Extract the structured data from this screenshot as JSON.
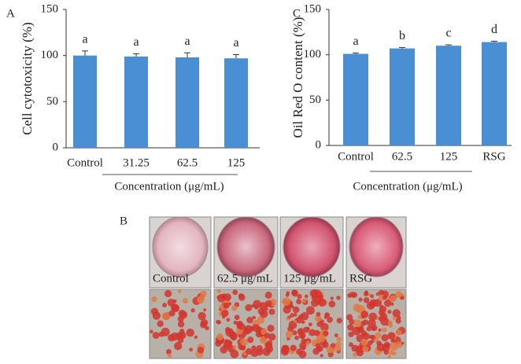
{
  "chart_data": [
    {
      "type": "bar",
      "panel": "A",
      "y_label": "Cell cytotoxicity (%)",
      "x_label": "Concentration (μg/mL)",
      "categories": [
        "Control",
        "31.25",
        "62.5",
        "125"
      ],
      "values": [
        100,
        99,
        98,
        97
      ],
      "errors": [
        5,
        3,
        5,
        4
      ],
      "annotations": [
        "a",
        "a",
        "a",
        "a"
      ],
      "color": "#4a8fd4",
      "ylim": [
        0,
        150
      ],
      "yticks": [
        0,
        50,
        100,
        150
      ]
    },
    {
      "type": "bar",
      "panel": "C",
      "y_label": "Oil Red O content (%)",
      "x_label": "Concentration (μg/mL)",
      "categories": [
        "Control",
        "62.5",
        "125",
        "RSG"
      ],
      "values": [
        101,
        107,
        110,
        114
      ],
      "errors": [
        1,
        1,
        1,
        1
      ],
      "annotations": [
        "a",
        "b",
        "c",
        "d"
      ],
      "color": "#4a8fd4",
      "ylim": [
        0,
        150
      ],
      "yticks": [
        0,
        50,
        100,
        150
      ]
    }
  ],
  "panel_b": {
    "label": "B",
    "images": [
      "Control",
      "62.5 μg/mL",
      "125 μg/mL",
      "RSG"
    ]
  }
}
